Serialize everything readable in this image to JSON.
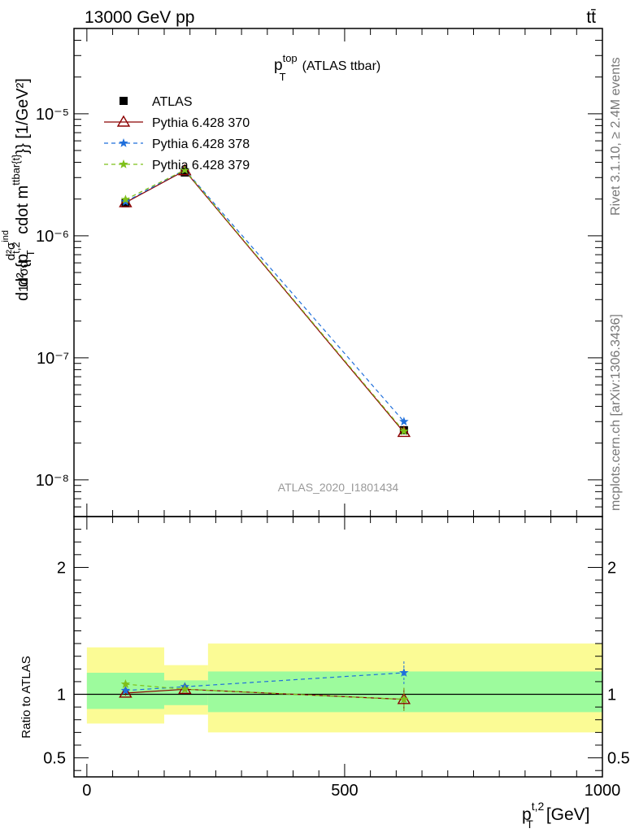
{
  "header": {
    "energy_label": "13000 GeV pp",
    "process_label": "tt̄"
  },
  "side_labels": {
    "rivet": "Rivet 3.1.10, ≥ 2.4M events",
    "mcplots": "mcplots.cern.ch [arXiv:1306.3436]"
  },
  "chart_data": [
    {
      "type": "scatter",
      "panel": "main",
      "title": "p_T^top (ATLAS ttbar)",
      "title_parts": {
        "p": "p",
        "sup": "top",
        "sub": "T",
        "rest": "(ATLAS ttbar)"
      },
      "watermark": "ATLAS_2020_I1801434",
      "ylabel": "d¹d/σd d²σ^ind / d²{p_T^{t,2} cdot m^{ttbar{t}}} [1/GeV²]",
      "ylabel_parts": {
        "pre": "d",
        "frac_top": "1d",
        "frac_bottom": "σd",
        "num": "d²σ",
        "num_sup": "ind",
        "den": "d² {p",
        "den_sup": "t,2",
        "den_sub": "T",
        "den_mid": " cdot m",
        "den_sup2": "ttbar{t}",
        "den_end": "}} [1/GeV²]"
      },
      "yscale": "log",
      "ylim": [
        5e-09,
        5e-05
      ],
      "ytick_labels": [
        "10⁻⁸",
        "10⁻⁷",
        "10⁻⁶",
        "10⁻⁵"
      ],
      "xlim": [
        -25,
        1000
      ],
      "x": [
        75,
        190,
        615
      ],
      "legend_position": "top-left",
      "series": [
        {
          "name": "ATLAS",
          "color": "#000000",
          "marker": "square",
          "style": "points",
          "values": [
            1.85e-06,
            3.3e-06,
            2.55e-08
          ]
        },
        {
          "name": "Pythia 6.428 370",
          "color": "#8b0000",
          "marker": "triangle",
          "style": "solid",
          "values": [
            1.87e-06,
            3.42e-06,
            2.45e-08
          ]
        },
        {
          "name": "Pythia 6.428 378",
          "color": "#1f6fdb",
          "marker": "star",
          "style": "dashed",
          "values": [
            1.9e-06,
            3.48e-06,
            3e-08
          ]
        },
        {
          "name": "Pythia 6.428 379",
          "color": "#7ec01a",
          "marker": "star",
          "style": "dashed",
          "values": [
            1.98e-06,
            3.46e-06,
            2.5e-08
          ]
        }
      ]
    },
    {
      "type": "scatter",
      "panel": "ratio",
      "ylabel": "Ratio to ATLAS",
      "xlabel": "p_T^{t,2} [GeV]",
      "xlabel_parts": {
        "p": "p",
        "sup": "t,2",
        "sub": "T",
        "rest": "[GeV]"
      },
      "ylim": [
        0.35,
        2.4
      ],
      "yticks": [
        0.5,
        1,
        2
      ],
      "ytick_labels": [
        "0.5",
        "1",
        "2"
      ],
      "xlim": [
        -25,
        1000
      ],
      "xticks": [
        0,
        500,
        1000
      ],
      "xtick_labels": [
        "0",
        "500",
        "1000"
      ],
      "bands": [
        {
          "x0": 0,
          "x1": 150,
          "outer": [
            0.77,
            1.37
          ],
          "inner": [
            0.885,
            1.17
          ]
        },
        {
          "x0": 150,
          "x1": 235,
          "outer": [
            0.84,
            1.23
          ],
          "inner": [
            0.915,
            1.11
          ]
        },
        {
          "x0": 235,
          "x1": 1000,
          "outer": [
            0.7,
            1.4
          ],
          "inner": [
            0.86,
            1.18
          ]
        }
      ],
      "band_colors": {
        "outer": "#fbfb95",
        "inner": "#9dfb9d"
      },
      "series": [
        {
          "name": "Pythia 6.428 370",
          "color": "#8b0000",
          "marker": "triangle",
          "style": "solid",
          "values": [
            1.01,
            1.04,
            0.96
          ],
          "err": [
            0.02,
            0.02,
            0.09
          ]
        },
        {
          "name": "Pythia 6.428 378",
          "color": "#1f6fdb",
          "marker": "star",
          "style": "dashed",
          "values": [
            1.03,
            1.06,
            1.17
          ],
          "err": [
            0.02,
            0.02,
            0.09
          ]
        },
        {
          "name": "Pythia 6.428 379",
          "color": "#7ec01a",
          "marker": "star",
          "style": "dashed",
          "values": [
            1.08,
            1.04,
            0.96
          ],
          "err": [
            0.02,
            0.02,
            0.09
          ]
        }
      ]
    }
  ]
}
